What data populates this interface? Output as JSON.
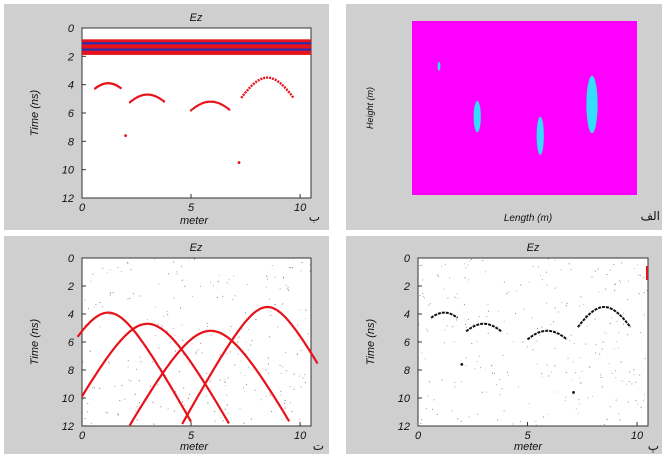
{
  "chart_data": [
    {
      "type": "scatter",
      "panel_letter": "ب",
      "title": "Ez",
      "xlabel": "meter",
      "ylabel": "Time (ns)",
      "xlim": [
        0,
        10.5
      ],
      "ylim": [
        12,
        0
      ],
      "x_ticks": [
        "0",
        "5",
        "10"
      ],
      "y_ticks": [
        "0",
        "2",
        "4",
        "6",
        "8",
        "10",
        "12"
      ],
      "grid": false,
      "colors": {
        "signal": "#e8121a",
        "band_center": "#2a2fb0",
        "background": "#ffffff"
      },
      "bands": [
        {
          "t_start": 0.8,
          "t_end": 1.9,
          "color": "#e8121a"
        },
        {
          "t_start": 1.0,
          "t_end": 1.15,
          "color": "#2a2fb0"
        },
        {
          "t_start": 1.45,
          "t_end": 1.6,
          "color": "#2a2fb0"
        }
      ],
      "hyperbolas": [
        {
          "x0": 1.2,
          "t0": 3.9,
          "x_min": 0.6,
          "x_max": 1.8,
          "style": "dots"
        },
        {
          "x0": 3.0,
          "t0": 4.7,
          "x_min": 2.2,
          "x_max": 3.8,
          "style": "dots"
        },
        {
          "x0": 5.9,
          "t0": 5.2,
          "x_min": 5.0,
          "x_max": 6.8,
          "style": "dots"
        },
        {
          "x0": 8.5,
          "t0": 3.5,
          "x_min": 7.3,
          "x_max": 9.7,
          "style": "thick"
        }
      ],
      "scatter_points": [
        {
          "x": 2.0,
          "t": 7.6
        },
        {
          "x": 7.2,
          "t": 9.5
        }
      ],
      "noise": "none"
    },
    {
      "type": "heatmap",
      "panel_letter": "الف",
      "title": "",
      "xlabel": "Length (m)",
      "ylabel": "Height (m)",
      "grid": false,
      "colors": {
        "background": "#ff00ff",
        "objects": "#33ddff"
      },
      "objects": [
        {
          "shape": "ellipse",
          "cx": 0.12,
          "cy": 0.26,
          "rx": 0.006,
          "ry": 0.026
        },
        {
          "shape": "ellipse",
          "cx": 0.29,
          "cy": 0.55,
          "rx": 0.016,
          "ry": 0.09
        },
        {
          "shape": "ellipse",
          "cx": 0.57,
          "cy": 0.66,
          "rx": 0.016,
          "ry": 0.11
        },
        {
          "shape": "ellipse",
          "cx": 0.8,
          "cy": 0.48,
          "rx": 0.025,
          "ry": 0.165
        }
      ]
    },
    {
      "type": "scatter",
      "panel_letter": "ت",
      "title": "Ez",
      "xlabel": "meter",
      "ylabel": "Time (ns)",
      "xlim": [
        0,
        10.5
      ],
      "ylim": [
        12,
        0
      ],
      "x_ticks": [
        "0",
        "5",
        "10"
      ],
      "y_ticks": [
        "0",
        "2",
        "4",
        "6",
        "8",
        "10",
        "12"
      ],
      "grid": false,
      "colors": {
        "signal": "#e8121a",
        "noise": "#555555"
      },
      "hyperbolas": [
        {
          "x0": 1.2,
          "t0": 3.9,
          "x_min": -0.2,
          "x_max": 5.0,
          "style": "line"
        },
        {
          "x0": 3.0,
          "t0": 4.7,
          "x_min": 0.0,
          "x_max": 7.0,
          "style": "line"
        },
        {
          "x0": 5.9,
          "t0": 5.2,
          "x_min": 2.0,
          "x_max": 9.5,
          "style": "line"
        },
        {
          "x0": 8.5,
          "t0": 3.5,
          "x_min": 4.0,
          "x_max": 10.8,
          "style": "line"
        }
      ],
      "noise": "sparse"
    },
    {
      "type": "scatter",
      "panel_letter": "پ",
      "title": "Ez",
      "xlabel": "meter",
      "ylabel": "Time (ns)",
      "xlim": [
        0,
        10.5
      ],
      "ylim": [
        12,
        0
      ],
      "x_ticks": [
        "0",
        "5",
        "10"
      ],
      "y_ticks": [
        "0",
        "2",
        "4",
        "6",
        "8",
        "10",
        "12"
      ],
      "grid": false,
      "colors": {
        "signal": "#111111",
        "noise": "#666666",
        "edge_mark": "#e8121a"
      },
      "hyperbolas": [
        {
          "x0": 1.2,
          "t0": 3.9,
          "x_min": 0.6,
          "x_max": 1.8,
          "style": "dark"
        },
        {
          "x0": 3.0,
          "t0": 4.7,
          "x_min": 2.2,
          "x_max": 3.8,
          "style": "dark"
        },
        {
          "x0": 5.9,
          "t0": 5.2,
          "x_min": 5.0,
          "x_max": 6.8,
          "style": "dark"
        },
        {
          "x0": 8.5,
          "t0": 3.5,
          "x_min": 7.3,
          "x_max": 9.7,
          "style": "dark"
        }
      ],
      "scatter_points": [
        {
          "x": 2.0,
          "t": 7.6
        },
        {
          "x": 7.1,
          "t": 9.6
        }
      ],
      "noise": "sparse"
    }
  ]
}
